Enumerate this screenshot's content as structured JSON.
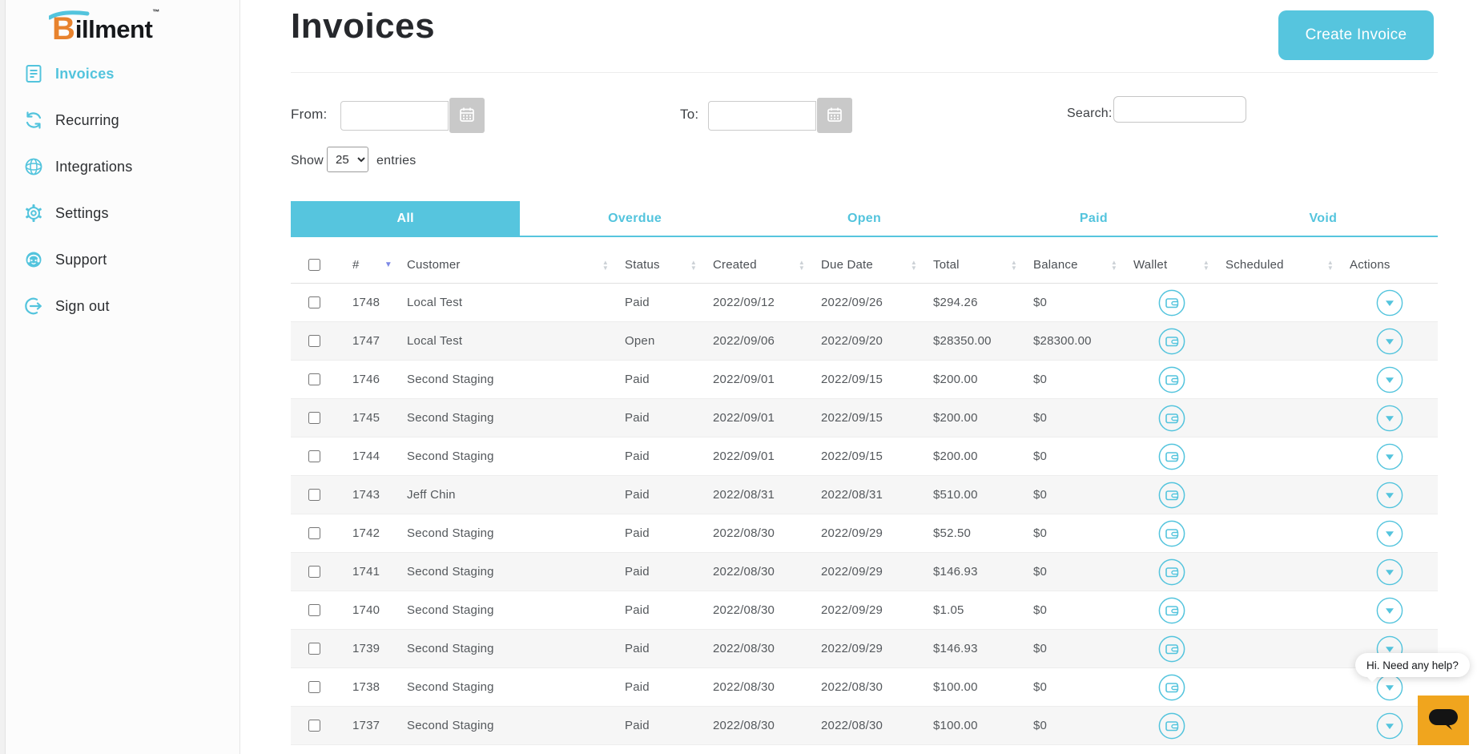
{
  "colors": {
    "accent": "#53c4dd",
    "button_teal": "#56c5de",
    "logo_orange": "#e8832e",
    "chat_orange": "#f0a51e",
    "sort_active": "#7c88e5",
    "row_stripe": "#f6f6f6"
  },
  "brand": {
    "logo_b": "B",
    "logo_rest": "illment",
    "trademark": "™"
  },
  "sidebar": {
    "items": [
      {
        "label": "Invoices",
        "icon": "invoice-icon",
        "active": true
      },
      {
        "label": "Recurring",
        "icon": "recurring-icon",
        "active": false
      },
      {
        "label": "Integrations",
        "icon": "integrations-icon",
        "active": false
      },
      {
        "label": "Settings",
        "icon": "settings-icon",
        "active": false
      },
      {
        "label": "Support",
        "icon": "support-icon",
        "active": false
      },
      {
        "label": "Sign out",
        "icon": "sign-out-icon",
        "active": false
      }
    ]
  },
  "header": {
    "title": "Invoices",
    "create_button_label": "Create Invoice"
  },
  "filters": {
    "from_label": "From:",
    "from_value": "",
    "to_label": "To:",
    "to_value": "",
    "search_label": "Search:",
    "search_value": "",
    "show_label": "Show",
    "entries_label": "entries",
    "page_size": "25"
  },
  "tabs": [
    {
      "label": "All",
      "active": true
    },
    {
      "label": "Overdue",
      "active": false
    },
    {
      "label": "Open",
      "active": false
    },
    {
      "label": "Paid",
      "active": false
    },
    {
      "label": "Void",
      "active": false
    }
  ],
  "table": {
    "columns": [
      {
        "key": "select",
        "label": "",
        "sortable": false
      },
      {
        "key": "id",
        "label": "#",
        "sortable": true,
        "sort": "desc"
      },
      {
        "key": "customer",
        "label": "Customer",
        "sortable": true
      },
      {
        "key": "status",
        "label": "Status",
        "sortable": true
      },
      {
        "key": "created",
        "label": "Created",
        "sortable": true
      },
      {
        "key": "due_date",
        "label": "Due Date",
        "sortable": true
      },
      {
        "key": "total",
        "label": "Total",
        "sortable": true
      },
      {
        "key": "balance",
        "label": "Balance",
        "sortable": true
      },
      {
        "key": "wallet",
        "label": "Wallet",
        "sortable": true
      },
      {
        "key": "scheduled",
        "label": "Scheduled",
        "sortable": true
      },
      {
        "key": "actions",
        "label": "Actions",
        "sortable": false
      }
    ],
    "rows": [
      {
        "id": "1748",
        "customer": "Local Test",
        "status": "Paid",
        "created": "2022/09/12",
        "due_date": "2022/09/26",
        "total": "$294.26",
        "balance": "$0",
        "scheduled": ""
      },
      {
        "id": "1747",
        "customer": "Local Test",
        "status": "Open",
        "created": "2022/09/06",
        "due_date": "2022/09/20",
        "total": "$28350.00",
        "balance": "$28300.00",
        "scheduled": ""
      },
      {
        "id": "1746",
        "customer": "Second Staging",
        "status": "Paid",
        "created": "2022/09/01",
        "due_date": "2022/09/15",
        "total": "$200.00",
        "balance": "$0",
        "scheduled": ""
      },
      {
        "id": "1745",
        "customer": "Second Staging",
        "status": "Paid",
        "created": "2022/09/01",
        "due_date": "2022/09/15",
        "total": "$200.00",
        "balance": "$0",
        "scheduled": ""
      },
      {
        "id": "1744",
        "customer": "Second Staging",
        "status": "Paid",
        "created": "2022/09/01",
        "due_date": "2022/09/15",
        "total": "$200.00",
        "balance": "$0",
        "scheduled": ""
      },
      {
        "id": "1743",
        "customer": "Jeff Chin",
        "status": "Paid",
        "created": "2022/08/31",
        "due_date": "2022/08/31",
        "total": "$510.00",
        "balance": "$0",
        "scheduled": ""
      },
      {
        "id": "1742",
        "customer": "Second Staging",
        "status": "Paid",
        "created": "2022/08/30",
        "due_date": "2022/09/29",
        "total": "$52.50",
        "balance": "$0",
        "scheduled": ""
      },
      {
        "id": "1741",
        "customer": "Second Staging",
        "status": "Paid",
        "created": "2022/08/30",
        "due_date": "2022/09/29",
        "total": "$146.93",
        "balance": "$0",
        "scheduled": ""
      },
      {
        "id": "1740",
        "customer": "Second Staging",
        "status": "Paid",
        "created": "2022/08/30",
        "due_date": "2022/09/29",
        "total": "$1.05",
        "balance": "$0",
        "scheduled": ""
      },
      {
        "id": "1739",
        "customer": "Second Staging",
        "status": "Paid",
        "created": "2022/08/30",
        "due_date": "2022/09/29",
        "total": "$146.93",
        "balance": "$0",
        "scheduled": ""
      },
      {
        "id": "1738",
        "customer": "Second Staging",
        "status": "Paid",
        "created": "2022/08/30",
        "due_date": "2022/08/30",
        "total": "$100.00",
        "balance": "$0",
        "scheduled": ""
      },
      {
        "id": "1737",
        "customer": "Second Staging",
        "status": "Paid",
        "created": "2022/08/30",
        "due_date": "2022/08/30",
        "total": "$100.00",
        "balance": "$0",
        "scheduled": ""
      }
    ]
  },
  "chat": {
    "tooltip": "Hi. Need any help?"
  }
}
